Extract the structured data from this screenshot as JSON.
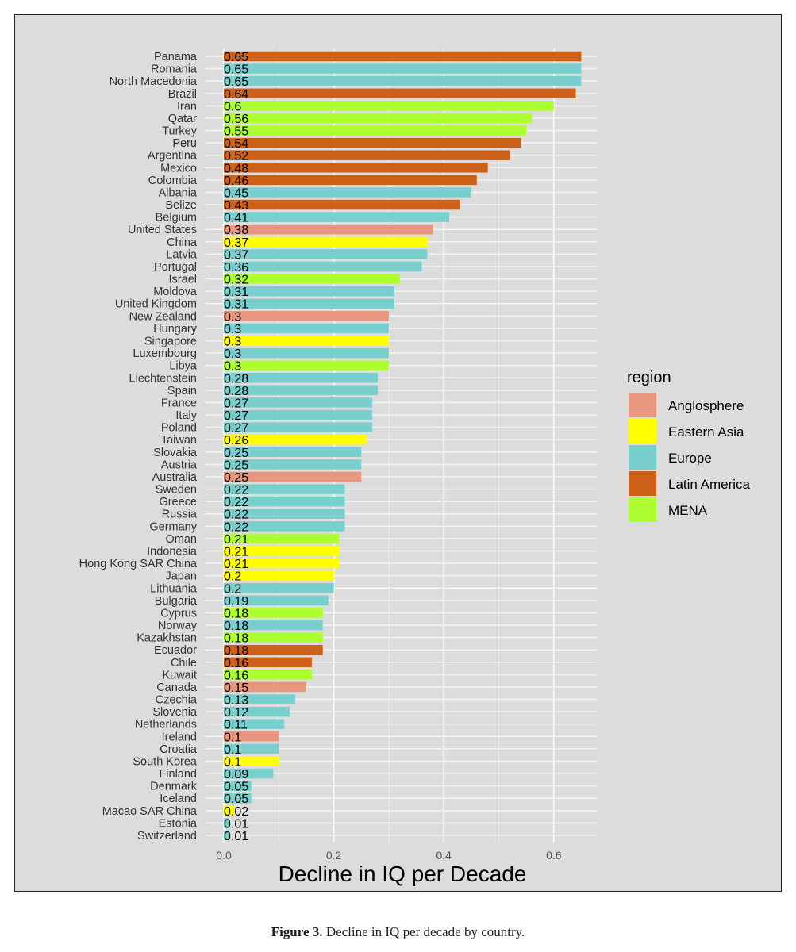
{
  "chart_data": {
    "type": "bar",
    "orientation": "horizontal",
    "xlabel": "Decline in IQ per Decade",
    "ylabel": "",
    "xlim": [
      0,
      0.68
    ],
    "xticks": [
      "0.0",
      "0.2",
      "0.4",
      "0.6"
    ],
    "xtick_values": [
      0,
      0.2,
      0.4,
      0.6
    ],
    "grid": true,
    "legend": {
      "title": "region",
      "placement": "right",
      "entries": [
        {
          "name": "Anglosphere",
          "color": "#E8967D"
        },
        {
          "name": "Eastern Asia",
          "color": "#FFFF00"
        },
        {
          "name": "Europe",
          "color": "#79CFCE"
        },
        {
          "name": "Latin America",
          "color": "#CC6219"
        },
        {
          "name": "MENA",
          "color": "#ADFF2F"
        }
      ]
    },
    "bars": [
      {
        "country": "Panama",
        "value": 0.65,
        "label": "0.65",
        "region": "Latin America"
      },
      {
        "country": "Romania",
        "value": 0.65,
        "label": "0.65",
        "region": "Europe"
      },
      {
        "country": "North Macedonia",
        "value": 0.65,
        "label": "0.65",
        "region": "Europe"
      },
      {
        "country": "Brazil",
        "value": 0.64,
        "label": "0.64",
        "region": "Latin America"
      },
      {
        "country": "Iran",
        "value": 0.6,
        "label": "0.6",
        "region": "MENA"
      },
      {
        "country": "Qatar",
        "value": 0.56,
        "label": "0.56",
        "region": "MENA"
      },
      {
        "country": "Turkey",
        "value": 0.55,
        "label": "0.55",
        "region": "MENA"
      },
      {
        "country": "Peru",
        "value": 0.54,
        "label": "0.54",
        "region": "Latin America"
      },
      {
        "country": "Argentina",
        "value": 0.52,
        "label": "0.52",
        "region": "Latin America"
      },
      {
        "country": "Mexico",
        "value": 0.48,
        "label": "0.48",
        "region": "Latin America"
      },
      {
        "country": "Colombia",
        "value": 0.46,
        "label": "0.46",
        "region": "Latin America"
      },
      {
        "country": "Albania",
        "value": 0.45,
        "label": "0.45",
        "region": "Europe"
      },
      {
        "country": "Belize",
        "value": 0.43,
        "label": "0.43",
        "region": "Latin America"
      },
      {
        "country": "Belgium",
        "value": 0.41,
        "label": "0.41",
        "region": "Europe"
      },
      {
        "country": "United States",
        "value": 0.38,
        "label": "0.38",
        "region": "Anglosphere"
      },
      {
        "country": "China",
        "value": 0.37,
        "label": "0.37",
        "region": "Eastern Asia"
      },
      {
        "country": "Latvia",
        "value": 0.37,
        "label": "0.37",
        "region": "Europe"
      },
      {
        "country": "Portugal",
        "value": 0.36,
        "label": "0.36",
        "region": "Europe"
      },
      {
        "country": "Israel",
        "value": 0.32,
        "label": "0.32",
        "region": "MENA"
      },
      {
        "country": "Moldova",
        "value": 0.31,
        "label": "0.31",
        "region": "Europe"
      },
      {
        "country": "United Kingdom",
        "value": 0.31,
        "label": "0.31",
        "region": "Europe"
      },
      {
        "country": "New Zealand",
        "value": 0.3,
        "label": "0.3",
        "region": "Anglosphere"
      },
      {
        "country": "Hungary",
        "value": 0.3,
        "label": "0.3",
        "region": "Europe"
      },
      {
        "country": "Singapore",
        "value": 0.3,
        "label": "0.3",
        "region": "Eastern Asia"
      },
      {
        "country": "Luxembourg",
        "value": 0.3,
        "label": "0.3",
        "region": "Europe"
      },
      {
        "country": "Libya",
        "value": 0.3,
        "label": "0.3",
        "region": "MENA"
      },
      {
        "country": "Liechtenstein",
        "value": 0.28,
        "label": "0.28",
        "region": "Europe"
      },
      {
        "country": "Spain",
        "value": 0.28,
        "label": "0.28",
        "region": "Europe"
      },
      {
        "country": "France",
        "value": 0.27,
        "label": "0.27",
        "region": "Europe"
      },
      {
        "country": "Italy",
        "value": 0.27,
        "label": "0.27",
        "region": "Europe"
      },
      {
        "country": "Poland",
        "value": 0.27,
        "label": "0.27",
        "region": "Europe"
      },
      {
        "country": "Taiwan",
        "value": 0.26,
        "label": "0.26",
        "region": "Eastern Asia"
      },
      {
        "country": "Slovakia",
        "value": 0.25,
        "label": "0.25",
        "region": "Europe"
      },
      {
        "country": "Austria",
        "value": 0.25,
        "label": "0.25",
        "region": "Europe"
      },
      {
        "country": "Australia",
        "value": 0.25,
        "label": "0.25",
        "region": "Anglosphere"
      },
      {
        "country": "Sweden",
        "value": 0.22,
        "label": "0.22",
        "region": "Europe"
      },
      {
        "country": "Greece",
        "value": 0.22,
        "label": "0.22",
        "region": "Europe"
      },
      {
        "country": "Russia",
        "value": 0.22,
        "label": "0.22",
        "region": "Europe"
      },
      {
        "country": "Germany",
        "value": 0.22,
        "label": "0.22",
        "region": "Europe"
      },
      {
        "country": "Oman",
        "value": 0.21,
        "label": "0.21",
        "region": "MENA"
      },
      {
        "country": "Indonesia",
        "value": 0.21,
        "label": "0.21",
        "region": "Eastern Asia"
      },
      {
        "country": "Hong Kong SAR China",
        "value": 0.21,
        "label": "0.21",
        "region": "Eastern Asia"
      },
      {
        "country": "Japan",
        "value": 0.2,
        "label": "0.2",
        "region": "Eastern Asia"
      },
      {
        "country": "Lithuania",
        "value": 0.2,
        "label": "0.2",
        "region": "Europe"
      },
      {
        "country": "Bulgaria",
        "value": 0.19,
        "label": "0.19",
        "region": "Europe"
      },
      {
        "country": "Cyprus",
        "value": 0.18,
        "label": "0.18",
        "region": "MENA"
      },
      {
        "country": "Norway",
        "value": 0.18,
        "label": "0.18",
        "region": "Europe"
      },
      {
        "country": "Kazakhstan",
        "value": 0.18,
        "label": "0.18",
        "region": "MENA"
      },
      {
        "country": "Ecuador",
        "value": 0.18,
        "label": "0.18",
        "region": "Latin America"
      },
      {
        "country": "Chile",
        "value": 0.16,
        "label": "0.16",
        "region": "Latin America"
      },
      {
        "country": "Kuwait",
        "value": 0.16,
        "label": "0.16",
        "region": "MENA"
      },
      {
        "country": "Canada",
        "value": 0.15,
        "label": "0.15",
        "region": "Anglosphere"
      },
      {
        "country": "Czechia",
        "value": 0.13,
        "label": "0.13",
        "region": "Europe"
      },
      {
        "country": "Slovenia",
        "value": 0.12,
        "label": "0.12",
        "region": "Europe"
      },
      {
        "country": "Netherlands",
        "value": 0.11,
        "label": "0.11",
        "region": "Europe"
      },
      {
        "country": "Ireland",
        "value": 0.1,
        "label": "0.1",
        "region": "Anglosphere"
      },
      {
        "country": "Croatia",
        "value": 0.1,
        "label": "0.1",
        "region": "Europe"
      },
      {
        "country": "South Korea",
        "value": 0.1,
        "label": "0.1",
        "region": "Eastern Asia"
      },
      {
        "country": "Finland",
        "value": 0.09,
        "label": "0.09",
        "region": "Europe"
      },
      {
        "country": "Denmark",
        "value": 0.05,
        "label": "0.05",
        "region": "Europe"
      },
      {
        "country": "Iceland",
        "value": 0.05,
        "label": "0.05",
        "region": "Europe"
      },
      {
        "country": "Macao SAR China",
        "value": 0.02,
        "label": "0.02",
        "region": "Eastern Asia"
      },
      {
        "country": "Estonia",
        "value": 0.01,
        "label": "0.01",
        "region": "Europe"
      },
      {
        "country": "Switzerland",
        "value": 0.01,
        "label": "0.01",
        "region": "Europe"
      }
    ]
  },
  "caption": {
    "label": "Figure 3.",
    "text": " Decline in IQ per decade by country."
  }
}
